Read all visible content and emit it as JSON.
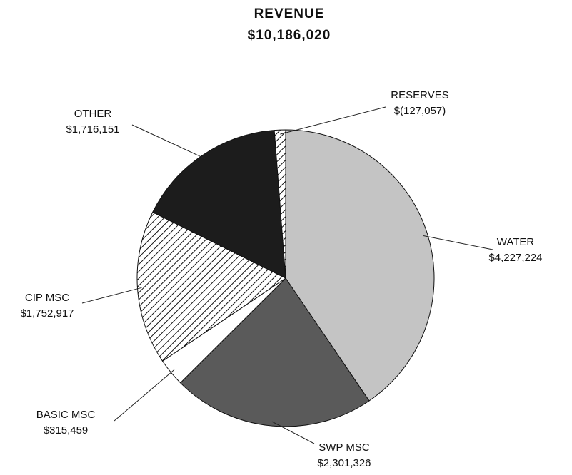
{
  "chart_data": {
    "type": "pie",
    "title": "REVENUE",
    "subtitle": "$10,186,020",
    "categories": [
      "WATER",
      "SWP MSC",
      "BASIC MSC",
      "CIP MSC",
      "OTHER",
      "RESERVES"
    ],
    "values": [
      4227224,
      2301326,
      315459,
      1752917,
      1716151,
      -127057
    ],
    "value_labels": [
      "$4,227,224",
      "$2,301,326",
      "$315,459",
      "$1,752,917",
      "$1,716,151",
      "$(127,057)"
    ],
    "colors": [
      "#c4c4c4",
      "#5a5a5a",
      "#ffffff",
      "#ffffff",
      "#1c1c1c",
      "#ffffff"
    ],
    "hatched": [
      false,
      false,
      false,
      true,
      false,
      true
    ]
  }
}
